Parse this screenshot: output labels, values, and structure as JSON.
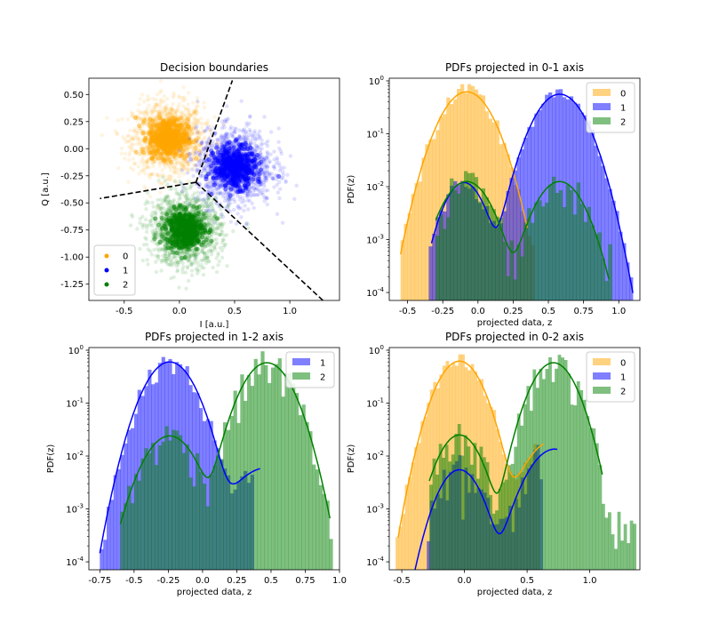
{
  "chart_data": [
    {
      "type": "scatter",
      "title": "Decision boundaries",
      "xlabel": "I [a.u.]",
      "ylabel": "Q [a.u.]",
      "xlim": [
        -0.82,
        1.45
      ],
      "ylim": [
        -1.4,
        0.65
      ],
      "xticks": [
        -0.5,
        0.0,
        0.5,
        1.0
      ],
      "yticks": [
        0.5,
        0.25,
        0.0,
        -0.25,
        -0.5,
        -0.75,
        -1.0,
        -1.25
      ],
      "legend_position": "bottom-left",
      "clusters": [
        {
          "name": "0",
          "color": "#ffa500",
          "center": [
            -0.1,
            0.1
          ],
          "spread": 0.16
        },
        {
          "name": "1",
          "color": "#0000ff",
          "center": [
            0.5,
            -0.17
          ],
          "spread": 0.17
        },
        {
          "name": "2",
          "color": "#008000",
          "center": [
            0.05,
            -0.75
          ],
          "spread": 0.16
        }
      ],
      "boundaries": [
        {
          "from": [
            0.15,
            -0.31
          ],
          "to": [
            0.48,
            0.63
          ]
        },
        {
          "from": [
            0.15,
            -0.31
          ],
          "to": [
            -0.72,
            -0.46
          ]
        },
        {
          "from": [
            0.15,
            -0.31
          ],
          "to": [
            1.3,
            -1.4
          ]
        }
      ]
    },
    {
      "type": "histogram",
      "title": "PDFs projected in 0-1 axis",
      "xlabel": "projected data, z",
      "ylabel": "PDF(z)",
      "yscale": "log",
      "xlim": [
        -0.63,
        1.15
      ],
      "ylim_exp": [
        -4.15,
        0.05
      ],
      "xticks": [
        -0.5,
        -0.25,
        0.0,
        0.25,
        0.5,
        0.75,
        1.0
      ],
      "legend_position": "top-right",
      "series": [
        {
          "name": "0",
          "color": "#ffa500",
          "range": [
            -0.55,
            0.4
          ],
          "fit": [
            [
              0.62,
              -0.08,
              0.125
            ]
          ],
          "fit_range": [
            -0.55,
            0.35
          ],
          "noise": 0.45
        },
        {
          "name": "1",
          "color": "#0000ff",
          "range": [
            -0.35,
            1.1
          ],
          "fit": [
            [
              0.56,
              0.58,
              0.125
            ],
            [
              0.012,
              -0.1,
              0.1
            ]
          ],
          "fit_range": [
            -0.33,
            1.1
          ],
          "noise": 0.3
        },
        {
          "name": "2",
          "color": "#008000",
          "range": [
            -0.3,
            0.95
          ],
          "fit": [
            [
              0.0125,
              -0.08,
              0.12
            ],
            [
              0.0125,
              0.58,
              0.12
            ]
          ],
          "fit_range": [
            -0.3,
            0.93
          ],
          "noise": 0.8
        }
      ]
    },
    {
      "type": "histogram",
      "title": "PDFs projected in 1-2 axis",
      "xlabel": "projected data, z",
      "ylabel": "PDF(z)",
      "yscale": "log",
      "xlim": [
        -0.83,
        1.0
      ],
      "ylim_exp": [
        -4.15,
        0.05
      ],
      "xticks": [
        -0.75,
        -0.5,
        -0.25,
        0.0,
        0.25,
        0.5,
        0.75,
        1.0
      ],
      "legend_position": "top-right",
      "series": [
        {
          "name": "1",
          "color": "#0000ff",
          "range": [
            -0.75,
            0.37
          ],
          "fit": [
            [
              0.6,
              -0.24,
              0.125
            ],
            [
              0.006,
              0.47,
              0.18
            ]
          ],
          "fit_range": [
            -0.75,
            0.42
          ],
          "noise": 0.45
        },
        {
          "name": "2",
          "color": "#008000",
          "range": [
            -0.6,
            0.93
          ],
          "fit": [
            [
              0.58,
              0.47,
              0.125
            ],
            [
              0.024,
              -0.24,
              0.13
            ]
          ],
          "fit_range": [
            -0.6,
            0.93
          ],
          "noise": 0.75
        }
      ]
    },
    {
      "type": "histogram",
      "title": "PDFs projected in 0-2 axis",
      "xlabel": "projected data, z",
      "ylabel": "PDF(z)",
      "yscale": "log",
      "xlim": [
        -0.6,
        1.4
      ],
      "ylim_exp": [
        -4.15,
        0.05
      ],
      "xticks": [
        -0.5,
        0.0,
        0.5,
        1.0
      ],
      "legend_position": "top-right",
      "series": [
        {
          "name": "0",
          "color": "#ffa500",
          "range": [
            -0.55,
            0.6
          ],
          "fit": [
            [
              0.62,
              -0.04,
              0.125
            ],
            [
              0.02,
              0.72,
              0.16
            ]
          ],
          "fit_range": [
            -0.53,
            0.63
          ],
          "noise": 0.45
        },
        {
          "name": "1",
          "color": "#0000ff",
          "range": [
            -0.3,
            0.62
          ],
          "fit": [
            [
              0.0055,
              -0.04,
              0.12
            ],
            [
              0.0135,
              0.72,
              0.15
            ]
          ],
          "fit_range": [
            -0.45,
            0.74
          ],
          "noise": 0.9
        },
        {
          "name": "2",
          "color": "#008000",
          "range": [
            -0.28,
            1.35
          ],
          "fit": [
            [
              0.58,
              0.71,
              0.125
            ],
            [
              0.025,
              -0.04,
              0.12
            ]
          ],
          "fit_range": [
            -0.28,
            1.1
          ],
          "noise": 0.7
        }
      ]
    }
  ]
}
